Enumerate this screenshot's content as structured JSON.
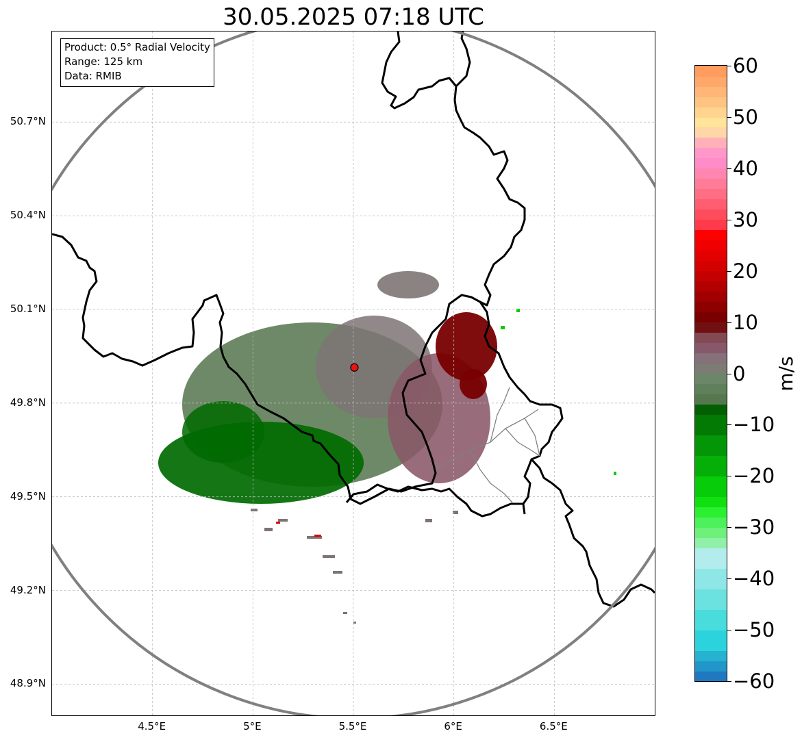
{
  "title": "30.05.2025 07:18 UTC",
  "info": {
    "product": "Product: 0.5° Radial Velocity",
    "range": "Range: 125 km",
    "source": "Data: RMIB"
  },
  "map": {
    "lat_range": [
      48.8,
      50.99
    ],
    "lon_range": [
      4.0,
      7.0
    ],
    "lat_ticks": [
      "50.7°N",
      "50.4°N",
      "50.1°N",
      "49.8°N",
      "49.5°N",
      "49.2°N",
      "48.9°N"
    ],
    "lat_tick_values": [
      50.7,
      50.4,
      50.1,
      49.8,
      49.5,
      49.2,
      48.9
    ],
    "lon_ticks": [
      "4.5°E",
      "5°E",
      "5.5°E",
      "6°E",
      "6.5°E"
    ],
    "lon_tick_values": [
      4.5,
      5.0,
      5.5,
      6.0,
      6.5
    ],
    "radar_site": {
      "lat": 49.914,
      "lon": 5.505
    },
    "range_ring_km": 125,
    "gridlines": true,
    "colors": {
      "ring": "#808080",
      "border": "#000000",
      "admin": "#808080",
      "radar_marker": "#ee1111"
    }
  },
  "colorbar": {
    "unit": "m/s",
    "min": -60,
    "max": 60,
    "ticks": [
      "60",
      "50",
      "40",
      "30",
      "20",
      "10",
      "0",
      "−10",
      "−20",
      "−30",
      "−40",
      "−50",
      "−60"
    ],
    "tick_values": [
      60,
      50,
      40,
      30,
      20,
      10,
      0,
      -10,
      -20,
      -30,
      -40,
      -50,
      -60
    ],
    "stops": [
      {
        "from": -60,
        "to": -58,
        "color": "#1f78c0"
      },
      {
        "from": -58,
        "to": -56,
        "color": "#2196c8"
      },
      {
        "from": -56,
        "to": -54,
        "color": "#26b2d0"
      },
      {
        "from": -54,
        "to": -50,
        "color": "#2bd4dc"
      },
      {
        "from": -50,
        "to": -46,
        "color": "#48dcdc"
      },
      {
        "from": -46,
        "to": -42,
        "color": "#6ce2e0"
      },
      {
        "from": -42,
        "to": -38,
        "color": "#8ee6e6"
      },
      {
        "from": -38,
        "to": -34,
        "color": "#b2ecec"
      },
      {
        "from": -34,
        "to": -32,
        "color": "#90f0a8"
      },
      {
        "from": -32,
        "to": -30,
        "color": "#6ef07a"
      },
      {
        "from": -30,
        "to": -28,
        "color": "#4cf05a"
      },
      {
        "from": -28,
        "to": -26,
        "color": "#2af030"
      },
      {
        "from": -26,
        "to": -24,
        "color": "#10e010"
      },
      {
        "from": -24,
        "to": -20,
        "color": "#06cc0a"
      },
      {
        "from": -20,
        "to": -16,
        "color": "#04b008"
      },
      {
        "from": -16,
        "to": -12,
        "color": "#039606"
      },
      {
        "from": -12,
        "to": -8,
        "color": "#027a04"
      },
      {
        "from": -8,
        "to": -6,
        "color": "#026002"
      },
      {
        "from": -6,
        "to": -4,
        "color": "#56784e"
      },
      {
        "from": -4,
        "to": -2,
        "color": "#60805c"
      },
      {
        "from": -2,
        "to": 0,
        "color": "#6c8668"
      },
      {
        "from": 0,
        "to": 2,
        "color": "#7c7c74"
      },
      {
        "from": 2,
        "to": 4,
        "color": "#86707a"
      },
      {
        "from": 4,
        "to": 6,
        "color": "#86586a"
      },
      {
        "from": 6,
        "to": 8,
        "color": "#844a54"
      },
      {
        "from": 8,
        "to": 10,
        "color": "#701010"
      },
      {
        "from": 10,
        "to": 12,
        "color": "#7a0000"
      },
      {
        "from": 12,
        "to": 14,
        "color": "#8c0000"
      },
      {
        "from": 14,
        "to": 16,
        "color": "#a00000"
      },
      {
        "from": 16,
        "to": 18,
        "color": "#b20000"
      },
      {
        "from": 18,
        "to": 20,
        "color": "#c40000"
      },
      {
        "from": 20,
        "to": 22,
        "color": "#d40000"
      },
      {
        "from": 22,
        "to": 24,
        "color": "#e20000"
      },
      {
        "from": 24,
        "to": 26,
        "color": "#f00000"
      },
      {
        "from": 26,
        "to": 28,
        "color": "#ff0000"
      },
      {
        "from": 28,
        "to": 30,
        "color": "#ff3a4a"
      },
      {
        "from": 30,
        "to": 32,
        "color": "#ff4c5c"
      },
      {
        "from": 32,
        "to": 34,
        "color": "#ff5e70"
      },
      {
        "from": 34,
        "to": 36,
        "color": "#ff6e84"
      },
      {
        "from": 36,
        "to": 38,
        "color": "#ff7c98"
      },
      {
        "from": 38,
        "to": 40,
        "color": "#ff86b0"
      },
      {
        "from": 40,
        "to": 42,
        "color": "#ff8cc8"
      },
      {
        "from": 42,
        "to": 44,
        "color": "#ff98c8"
      },
      {
        "from": 44,
        "to": 46,
        "color": "#ffb0b8"
      },
      {
        "from": 46,
        "to": 48,
        "color": "#ffd6a8"
      },
      {
        "from": 48,
        "to": 50,
        "color": "#ffe49a"
      },
      {
        "from": 50,
        "to": 52,
        "color": "#ffd48e"
      },
      {
        "from": 52,
        "to": 54,
        "color": "#ffc482"
      },
      {
        "from": 54,
        "to": 56,
        "color": "#ffb676"
      },
      {
        "from": 56,
        "to": 58,
        "color": "#ffa86a"
      },
      {
        "from": 58,
        "to": 60,
        "color": "#ff9c5e"
      }
    ]
  },
  "echo_regions": [
    {
      "name": "approaching-core",
      "velocity": -12,
      "color": "#006a00"
    },
    {
      "name": "approaching-light",
      "velocity": -4,
      "color": "#5e7c56"
    },
    {
      "name": "near-zero",
      "velocity": 2,
      "color": "#7e7474"
    },
    {
      "name": "receding-light",
      "velocity": 5,
      "color": "#8a5868"
    },
    {
      "name": "receding-core",
      "velocity": 11,
      "color": "#780000"
    }
  ]
}
